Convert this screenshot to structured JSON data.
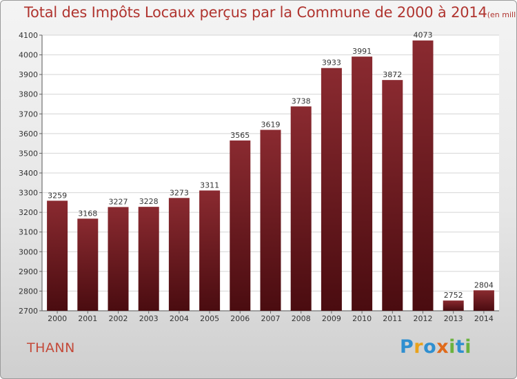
{
  "chart_data": {
    "type": "bar",
    "title": "Total des Impôts Locaux perçus par la Commune de 2000 à 2014",
    "unit_note": "(en milliers d'€)",
    "categories": [
      "2000",
      "2001",
      "2002",
      "2003",
      "2004",
      "2005",
      "2006",
      "2007",
      "2008",
      "2009",
      "2010",
      "2011",
      "2012",
      "2013",
      "2014"
    ],
    "values": [
      3259,
      3168,
      3227,
      3228,
      3273,
      3311,
      3565,
      3619,
      3738,
      3933,
      3991,
      3872,
      4073,
      2752,
      2804
    ],
    "ylim": [
      2700,
      4100
    ],
    "yticks": [
      2700,
      2800,
      2900,
      3000,
      3100,
      3200,
      3300,
      3400,
      3500,
      3600,
      3700,
      3800,
      3900,
      4000,
      4100
    ],
    "grid": true,
    "bar_color": "#7a1e22",
    "bar_color_dark": "#4a0c10"
  },
  "commune": "THANN",
  "logo": {
    "text": "Proxiti",
    "letters": [
      {
        "ch": "P",
        "color": "#2f8fd0"
      },
      {
        "ch": "r",
        "color": "#e9a21c"
      },
      {
        "ch": "o",
        "color": "#2f8fd0"
      },
      {
        "ch": "x",
        "color": "#e06a1b"
      },
      {
        "ch": "i",
        "color": "#6ab23e"
      },
      {
        "ch": "t",
        "color": "#2f8fd0"
      },
      {
        "ch": "i",
        "color": "#6ab23e"
      }
    ]
  }
}
